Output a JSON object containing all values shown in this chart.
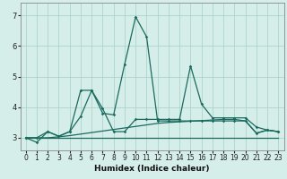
{
  "xlabel": "Humidex (Indice chaleur)",
  "ylabel": "",
  "xlim": [
    -0.5,
    23.5
  ],
  "ylim": [
    2.6,
    7.4
  ],
  "yticks": [
    3,
    4,
    5,
    6,
    7
  ],
  "xticks": [
    0,
    1,
    2,
    3,
    4,
    5,
    6,
    7,
    8,
    9,
    10,
    11,
    12,
    13,
    14,
    15,
    16,
    17,
    18,
    19,
    20,
    21,
    22,
    23
  ],
  "bg_color": "#d6eeea",
  "grid_color": "#aed4cc",
  "line_color": "#1a6b5e",
  "line1_x": [
    0,
    1,
    2,
    3,
    4,
    5,
    6,
    7,
    8,
    9,
    10,
    11,
    12,
    13,
    14,
    15,
    16,
    17,
    18,
    19,
    20,
    21,
    22,
    23
  ],
  "line1_y": [
    3.0,
    2.85,
    3.2,
    3.05,
    3.2,
    3.7,
    4.55,
    3.8,
    3.75,
    5.4,
    6.95,
    6.3,
    3.55,
    3.55,
    3.55,
    3.55,
    3.55,
    3.55,
    3.55,
    3.55,
    3.55,
    3.15,
    3.25,
    3.2
  ],
  "line2_x": [
    0,
    23
  ],
  "line2_y": [
    3.0,
    3.0
  ],
  "line3_x": [
    0,
    1,
    2,
    3,
    4,
    5,
    6,
    7,
    8,
    9,
    10,
    11,
    12,
    13,
    14,
    15,
    16,
    17,
    18,
    19,
    20,
    21,
    22,
    23
  ],
  "line3_y": [
    3.0,
    3.0,
    3.0,
    3.03,
    3.07,
    3.12,
    3.17,
    3.22,
    3.27,
    3.32,
    3.37,
    3.42,
    3.47,
    3.5,
    3.52,
    3.54,
    3.56,
    3.58,
    3.6,
    3.6,
    3.55,
    3.15,
    3.25,
    3.2
  ],
  "line4_x": [
    0,
    1,
    2,
    3,
    4,
    5,
    6,
    7,
    8,
    9,
    10,
    11,
    12,
    13,
    14,
    15,
    16,
    17,
    18,
    19,
    20,
    21,
    22,
    23
  ],
  "line4_y": [
    3.0,
    3.0,
    3.2,
    3.05,
    3.2,
    4.55,
    4.55,
    3.95,
    3.2,
    3.2,
    3.6,
    3.6,
    3.6,
    3.6,
    3.6,
    5.35,
    4.1,
    3.65,
    3.65,
    3.65,
    3.65,
    3.35,
    3.25,
    3.2
  ],
  "tick_fontsize": 5.5,
  "xlabel_fontsize": 6.5,
  "xlabel_fontweight": "bold"
}
